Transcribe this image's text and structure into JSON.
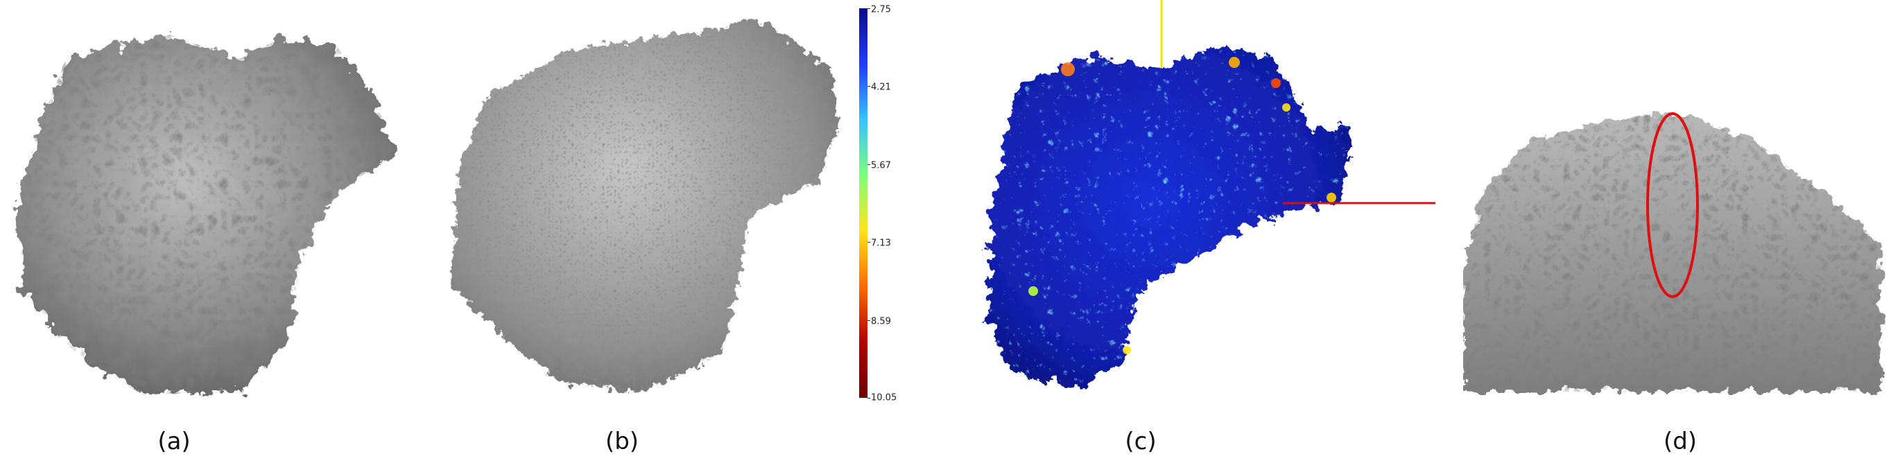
{
  "captions": [
    "(a)",
    "(b)",
    "(c)",
    "(d)"
  ],
  "colorbar": {
    "ticks": [
      "2.75",
      "4.21",
      "5.67",
      "7.13",
      "8.59",
      "10.05"
    ],
    "colors": [
      "#0a0a8a",
      "#1f3cff",
      "#36c3ff",
      "#7dff7a",
      "#ffe31a",
      "#ff6a00",
      "#b30000",
      "#6e0000"
    ]
  },
  "colors": {
    "surface_gray": "#8c8c8c",
    "surface_blue": "#1426c8",
    "axis_yellow": "#e8e800",
    "axis_red": "#d21212",
    "highlight_ring": "#e01010"
  }
}
